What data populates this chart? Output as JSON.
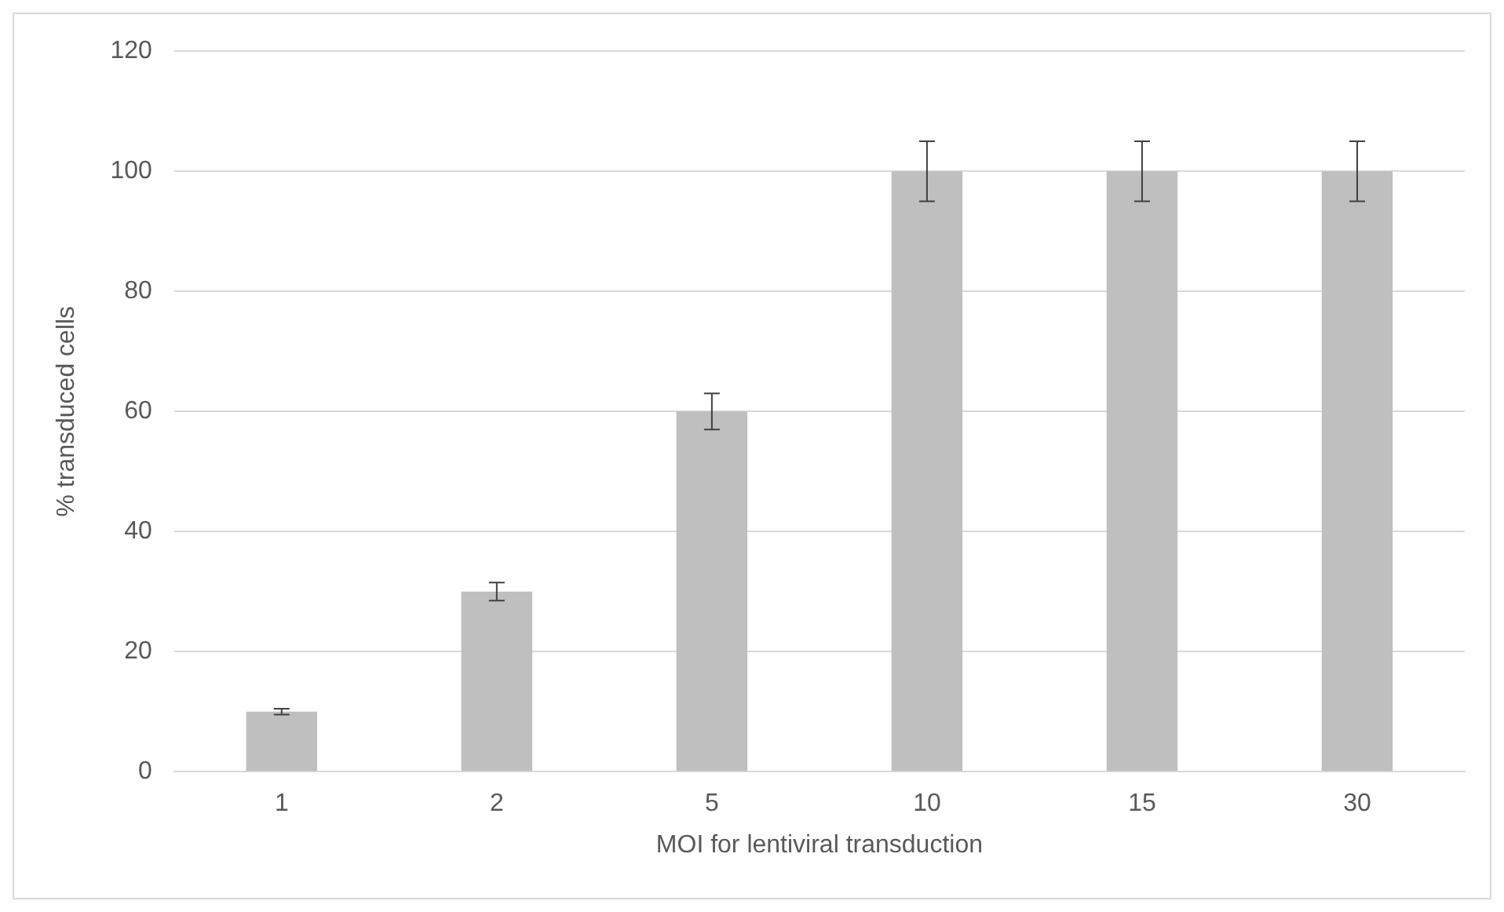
{
  "chart_data": {
    "type": "bar",
    "xlabel": "MOI for lentiviral transduction",
    "ylabel": "% transduced cells",
    "categories": [
      "1",
      "2",
      "5",
      "10",
      "15",
      "30"
    ],
    "values": [
      10,
      30,
      60,
      100,
      100,
      100
    ],
    "color": "#bfbfbf",
    "errors": [
      0.5,
      1.5,
      3,
      5,
      5,
      5
    ],
    "ylim": [
      0,
      120
    ],
    "yticks": [
      0,
      20,
      40,
      60,
      80,
      100,
      120
    ],
    "grid": "y",
    "legend": false
  }
}
